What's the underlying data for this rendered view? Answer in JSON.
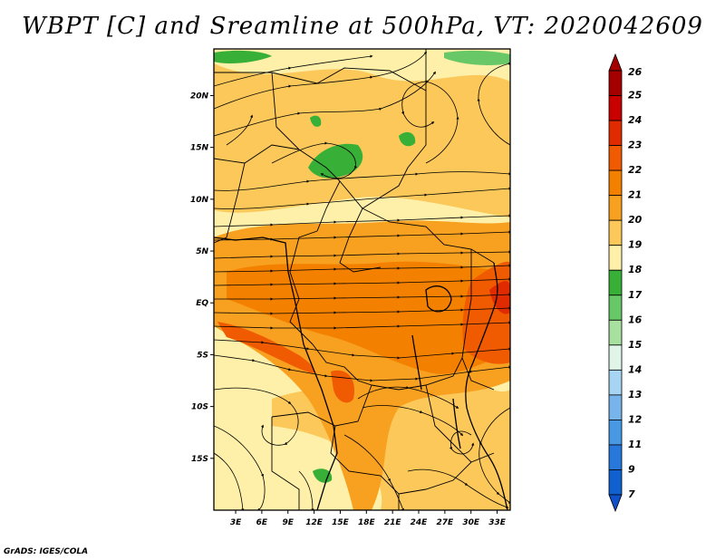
{
  "title": "WBPT [C] and Sreamline at 500hPa, VT: 2020042609",
  "credit": "GrADS: IGES/COLA",
  "map": {
    "lat_labels": [
      "20N",
      "15N",
      "10N",
      "5N",
      "EQ",
      "5S",
      "10S",
      "15S"
    ],
    "lat_values": [
      20,
      15,
      10,
      5,
      0,
      -5,
      -10,
      -15
    ],
    "lon_labels": [
      "3E",
      "6E",
      "9E",
      "12E",
      "15E",
      "18E",
      "21E",
      "24E",
      "27E",
      "30E",
      "33E"
    ],
    "lon_values": [
      3,
      6,
      9,
      12,
      15,
      18,
      21,
      24,
      27,
      30,
      33
    ],
    "lon_range": [
      0.5,
      34.5
    ],
    "lat_range": [
      -20,
      24.5
    ]
  },
  "colorbar": {
    "levels": [
      "26",
      "25",
      "24",
      "23",
      "22",
      "21",
      "20",
      "19",
      "18",
      "17",
      "16",
      "15",
      "14",
      "13",
      "12",
      "11",
      "9",
      "7"
    ],
    "colors": [
      "#a50000",
      "#c80000",
      "#e02a00",
      "#f05a00",
      "#f48000",
      "#f8a020",
      "#fcc85a",
      "#fef0a8",
      "#38b038",
      "#68c868",
      "#a8e0a0",
      "#e0f4e8",
      "#a8d4f4",
      "#78b4ec",
      "#4898e4",
      "#2878dc",
      "#1060d0"
    ]
  },
  "palette": {
    "pale": "#fef0a8",
    "light": "#fcc85a",
    "mid": "#f8a020",
    "orange": "#f48000",
    "deep": "#f05a00",
    "red": "#e02a00",
    "green": "#38b038",
    "lightgreen": "#68c868"
  }
}
